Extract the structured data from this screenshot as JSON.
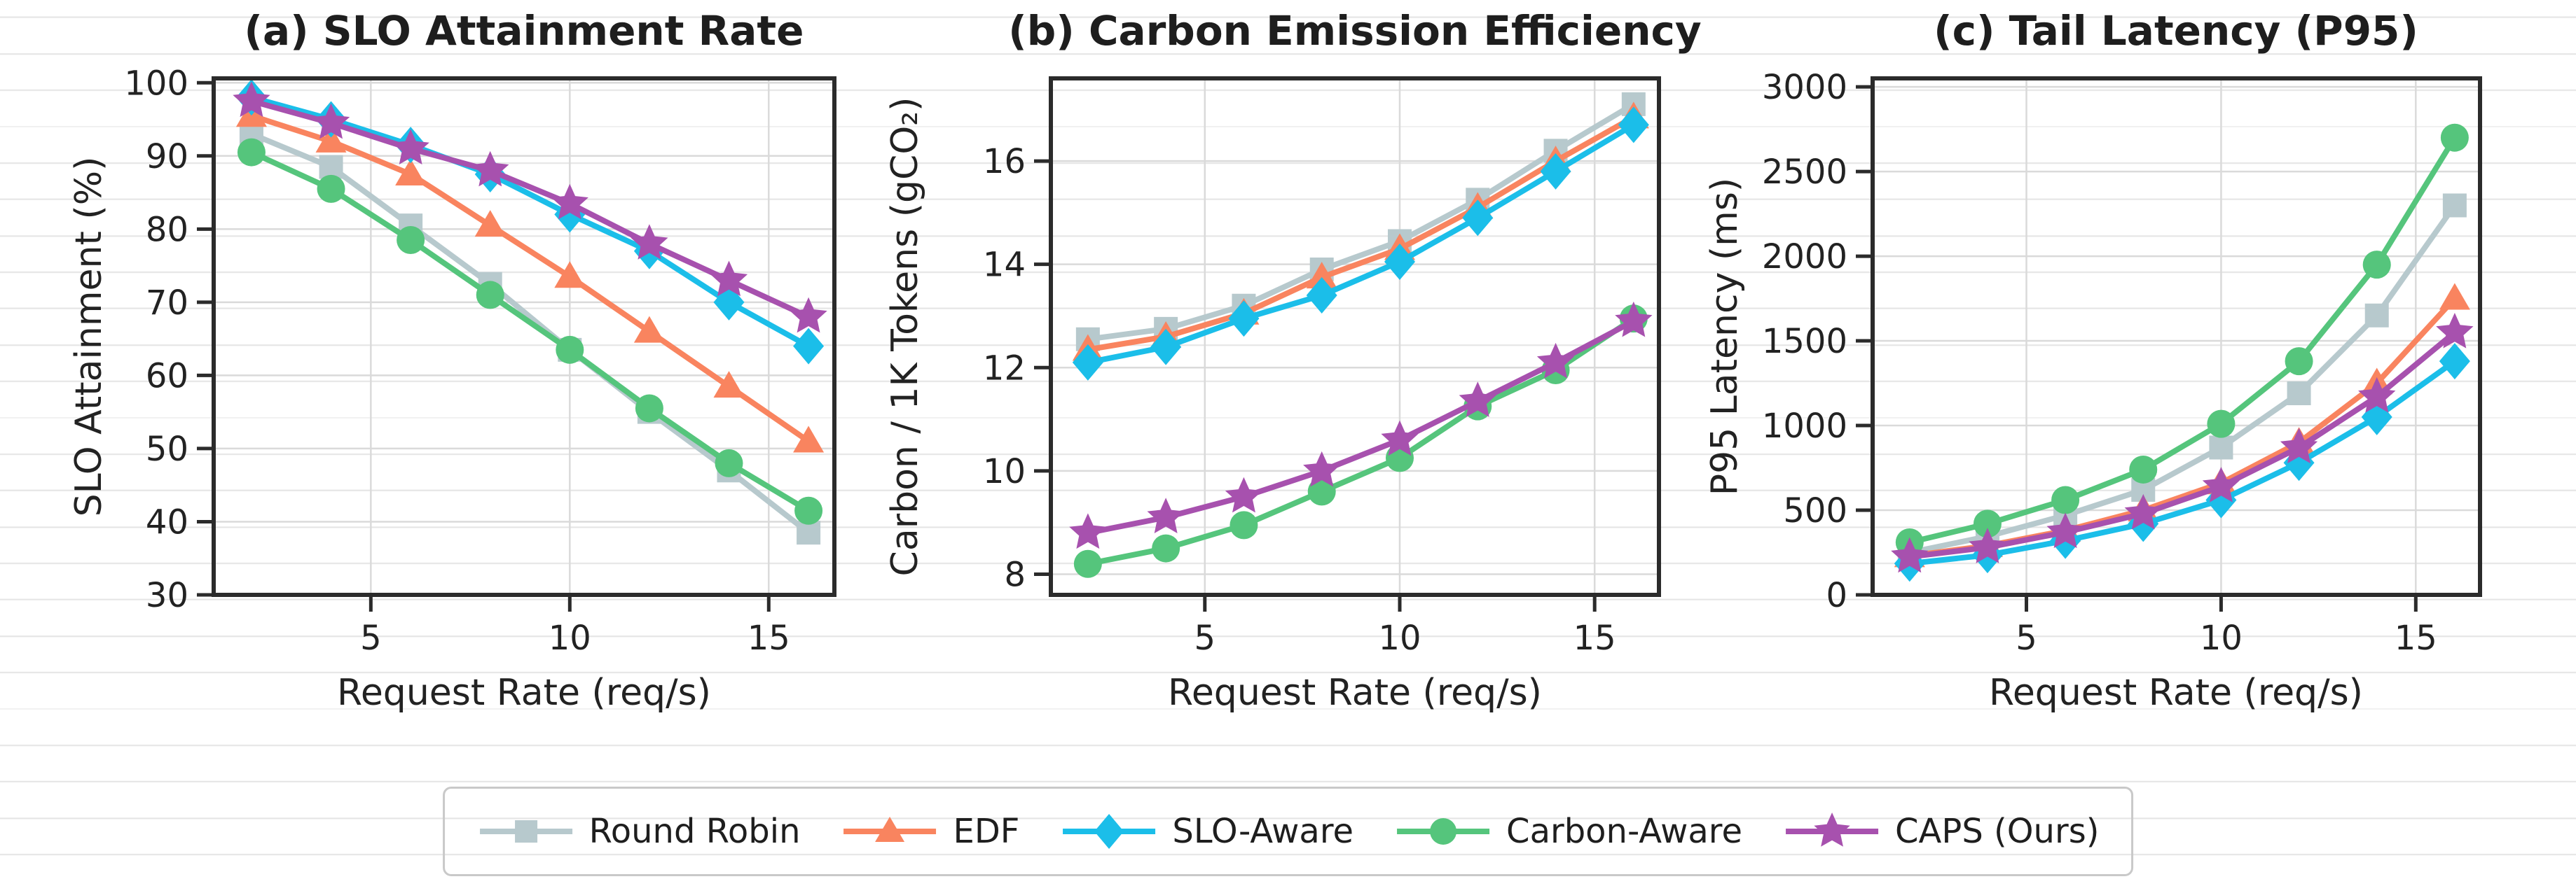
{
  "figure": {
    "stripe_color": "#e5e5e5",
    "spine_color": "#2b2b2b",
    "grid_color": "#dadada",
    "text_color": "#222222",
    "accent_colors": {
      "round_robin": "#b7c9cd",
      "edf": "#f9845f",
      "slo_aware": "#1bbee9",
      "carbon_aware": "#55c57c",
      "caps": "#a751ae"
    }
  },
  "legend": {
    "items": [
      {
        "label": "Round Robin",
        "color": "#b7c9cd",
        "marker": "square"
      },
      {
        "label": "EDF",
        "color": "#f9845f",
        "marker": "triangle"
      },
      {
        "label": "SLO-Aware",
        "color": "#1bbee9",
        "marker": "diamond"
      },
      {
        "label": "Carbon-Aware",
        "color": "#55c57c",
        "marker": "circle"
      },
      {
        "label": "CAPS (Ours)",
        "color": "#a751ae",
        "marker": "star"
      }
    ]
  },
  "chart_data": [
    {
      "id": "a",
      "type": "line",
      "title": "(a) SLO Attainment Rate",
      "xlabel": "Request Rate (req/s)",
      "ylabel": "SLO Attainment (%)",
      "x": [
        2,
        4,
        6,
        8,
        10,
        12,
        14,
        16
      ],
      "xticks": [
        5,
        10,
        15
      ],
      "yticks": [
        30,
        40,
        50,
        60,
        70,
        80,
        90,
        100
      ],
      "xlim": [
        1.05,
        16.65
      ],
      "ylim": [
        30,
        100.6
      ],
      "grid": true,
      "series": [
        {
          "name": "Round Robin",
          "color": "#b7c9cd",
          "marker": "square",
          "values": [
            93,
            88.5,
            80.5,
            72.5,
            63.5,
            55,
            47,
            38.5
          ]
        },
        {
          "name": "EDF",
          "color": "#f9845f",
          "marker": "triangle",
          "values": [
            95.5,
            92,
            87.5,
            80.5,
            73.5,
            66,
            58.5,
            51
          ]
        },
        {
          "name": "SLO-Aware",
          "color": "#1bbee9",
          "marker": "diamond",
          "values": [
            98,
            95,
            91.5,
            87.5,
            82,
            77,
            70,
            64
          ]
        },
        {
          "name": "Carbon-Aware",
          "color": "#55c57c",
          "marker": "circle",
          "values": [
            90.5,
            85.5,
            78.5,
            71,
            63.5,
            55.5,
            48,
            41.5
          ]
        },
        {
          "name": "CAPS (Ours)",
          "color": "#a751ae",
          "marker": "star",
          "values": [
            97.5,
            94.5,
            91,
            88,
            83.5,
            78,
            73,
            68
          ]
        }
      ]
    },
    {
      "id": "b",
      "type": "line",
      "title": "(b) Carbon Emission Efficiency",
      "xlabel": "Request Rate (req/s)",
      "ylabel": "Carbon / 1K Tokens (gCO₂)",
      "x": [
        2,
        4,
        6,
        8,
        10,
        12,
        14,
        16
      ],
      "xticks": [
        5,
        10,
        15
      ],
      "yticks": [
        8,
        10,
        12,
        14,
        16
      ],
      "xlim": [
        1.05,
        16.65
      ],
      "ylim": [
        7.6,
        17.6
      ],
      "grid": true,
      "series": [
        {
          "name": "Round Robin",
          "color": "#b7c9cd",
          "marker": "square",
          "values": [
            12.55,
            12.75,
            13.2,
            13.9,
            14.45,
            15.25,
            16.2,
            17.1
          ]
        },
        {
          "name": "EDF",
          "color": "#f9845f",
          "marker": "triangle",
          "values": [
            12.35,
            12.6,
            13.05,
            13.75,
            14.3,
            15.1,
            16.0,
            16.85
          ]
        },
        {
          "name": "SLO-Aware",
          "color": "#1bbee9",
          "marker": "diamond",
          "values": [
            12.1,
            12.4,
            12.95,
            13.4,
            14.05,
            14.9,
            15.8,
            16.7
          ]
        },
        {
          "name": "Carbon-Aware",
          "color": "#55c57c",
          "marker": "circle",
          "values": [
            8.2,
            8.5,
            8.95,
            9.6,
            10.25,
            11.25,
            11.95,
            12.95
          ]
        },
        {
          "name": "CAPS (Ours)",
          "color": "#a751ae",
          "marker": "star",
          "values": [
            8.8,
            9.1,
            9.5,
            10.0,
            10.6,
            11.35,
            12.1,
            12.9
          ]
        }
      ]
    },
    {
      "id": "c",
      "type": "line",
      "title": "(c) Tail Latency (P95)",
      "xlabel": "Request Rate (req/s)",
      "ylabel": "P95 Latency (ms)",
      "x": [
        2,
        4,
        6,
        8,
        10,
        12,
        14,
        16
      ],
      "xticks": [
        5,
        10,
        15
      ],
      "yticks": [
        0,
        500,
        1000,
        1500,
        2000,
        2500,
        3000
      ],
      "xlim": [
        1.05,
        16.65
      ],
      "ylim": [
        0,
        3050
      ],
      "grid": true,
      "series": [
        {
          "name": "Round Robin",
          "color": "#b7c9cd",
          "marker": "square",
          "values": [
            250,
            345,
            470,
            620,
            870,
            1190,
            1650,
            2300
          ]
        },
        {
          "name": "EDF",
          "color": "#f9845f",
          "marker": "triangle",
          "values": [
            230,
            290,
            380,
            500,
            660,
            900,
            1250,
            1750
          ]
        },
        {
          "name": "SLO-Aware",
          "color": "#1bbee9",
          "marker": "diamond",
          "values": [
            185,
            235,
            320,
            420,
            560,
            780,
            1050,
            1380
          ]
        },
        {
          "name": "Carbon-Aware",
          "color": "#55c57c",
          "marker": "circle",
          "values": [
            310,
            420,
            560,
            740,
            1010,
            1380,
            1950,
            2700
          ]
        },
        {
          "name": "CAPS (Ours)",
          "color": "#a751ae",
          "marker": "star",
          "values": [
            225,
            280,
            370,
            480,
            640,
            870,
            1170,
            1550
          ]
        }
      ]
    }
  ]
}
